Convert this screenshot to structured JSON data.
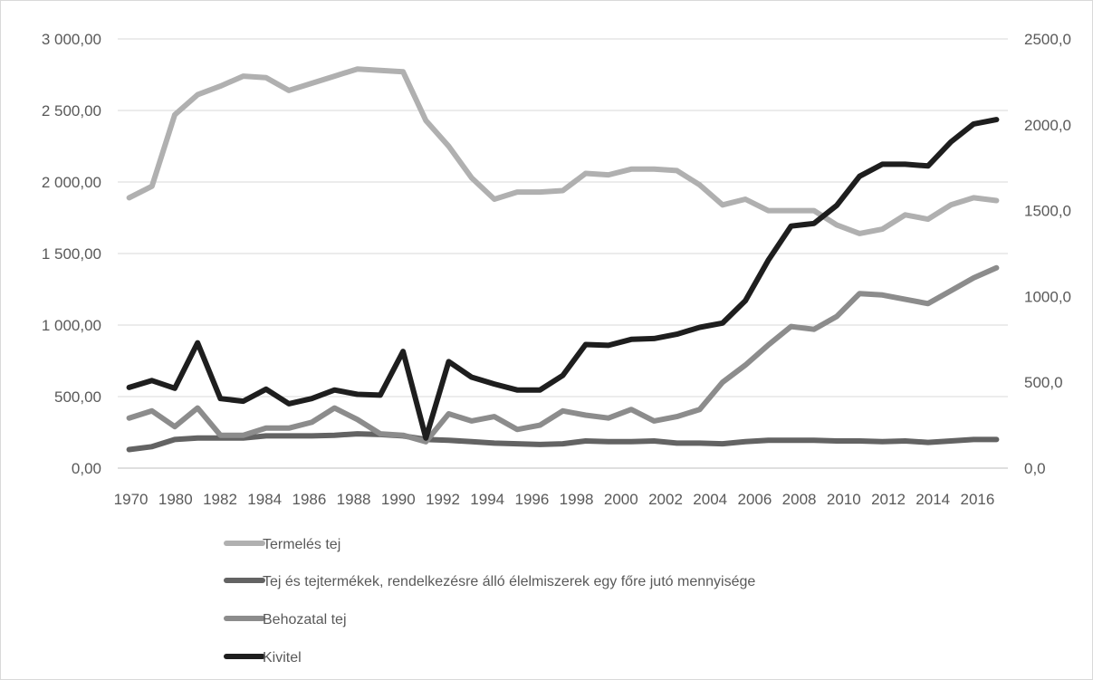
{
  "chart_data": {
    "type": "line",
    "title": "",
    "x": [
      "1970",
      "1975",
      "1980",
      "1981",
      "1982",
      "1983",
      "1984",
      "1985",
      "1986",
      "1987",
      "1988",
      "1989",
      "1990",
      "1991",
      "1992",
      "1993",
      "1994",
      "1995",
      "1996",
      "1997",
      "1998",
      "1999",
      "2000",
      "2001",
      "2002",
      "2003",
      "2004",
      "2005",
      "2006",
      "2007",
      "2008",
      "2009",
      "2010",
      "2011",
      "2012",
      "2013",
      "2014",
      "2015",
      "2016"
    ],
    "x_tick_labels": [
      "1970",
      "1980",
      "1982",
      "1984",
      "1986",
      "1988",
      "1990",
      "1992",
      "1994",
      "1996",
      "1998",
      "2000",
      "2002",
      "2004",
      "2006",
      "2008",
      "2010",
      "2012",
      "2014",
      "2016"
    ],
    "y_left": {
      "min": 0,
      "max": 3000,
      "step": 500,
      "tick_labels": [
        "0,00",
        "500,00",
        "1 000,00",
        "1 500,00",
        "2 000,00",
        "2 500,00",
        "3 000,00"
      ]
    },
    "y_right": {
      "min": 0,
      "max": 2500,
      "step": 500,
      "tick_labels": [
        "0,0",
        "500,0",
        "1000,0",
        "1500,0",
        "2000,0",
        "2500,0"
      ]
    },
    "grid": true,
    "legend_position": "bottom",
    "series": [
      {
        "name": "Termelés tej",
        "axis": "left",
        "color": "#b0b0b0",
        "values": [
          1890,
          1970,
          2470,
          2610,
          2670,
          2740,
          2730,
          2640,
          2690,
          2740,
          2790,
          2780,
          2770,
          2430,
          2250,
          2030,
          1880,
          1930,
          1930,
          1940,
          2060,
          2050,
          2090,
          2090,
          2080,
          1980,
          1840,
          1880,
          1800,
          1800,
          1800,
          1700,
          1640,
          1670,
          1770,
          1740,
          1840,
          1890,
          1870
        ]
      },
      {
        "name": "Tej és tejtermékek, rendelkezésre álló élelmiszerek egy főre jutó mennyisége",
        "axis": "left",
        "color": "#636363",
        "values": [
          130,
          150,
          200,
          210,
          210,
          210,
          225,
          225,
          225,
          230,
          240,
          235,
          225,
          200,
          195,
          185,
          175,
          170,
          165,
          170,
          190,
          185,
          185,
          190,
          175,
          175,
          170,
          185,
          195,
          195,
          195,
          190,
          190,
          185,
          190,
          180,
          190,
          200,
          200
        ]
      },
      {
        "name": "Behozatal tej",
        "axis": "left",
        "color": "#8c8c8c",
        "values": [
          350,
          400,
          290,
          420,
          230,
          230,
          280,
          280,
          320,
          420,
          340,
          240,
          230,
          185,
          380,
          330,
          360,
          270,
          300,
          400,
          370,
          350,
          410,
          330,
          360,
          410,
          600,
          720,
          860,
          990,
          970,
          1060,
          1220,
          1210,
          1180,
          1150,
          1240,
          1330,
          1400
        ]
      },
      {
        "name": "Kivitel",
        "axis": "right",
        "color": "#1e1e1e",
        "values": [
          470,
          510,
          465,
          730,
          405,
          390,
          460,
          375,
          405,
          455,
          430,
          425,
          680,
          175,
          620,
          530,
          490,
          455,
          455,
          540,
          720,
          715,
          750,
          755,
          780,
          820,
          845,
          975,
          1210,
          1410,
          1425,
          1530,
          1700,
          1770,
          1770,
          1760,
          1900,
          2005,
          2030
        ]
      }
    ]
  }
}
